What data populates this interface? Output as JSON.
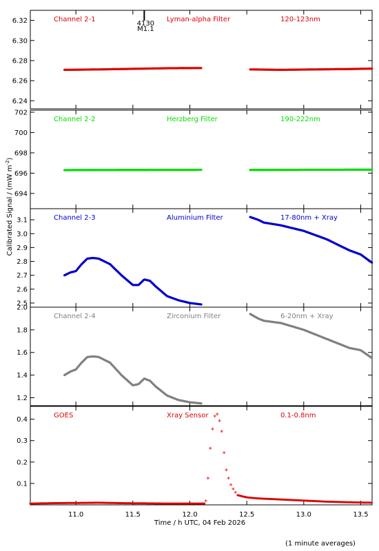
{
  "footer_note": "(1 minute averages)",
  "chart_data": {
    "type": "scatter",
    "xlabel": "Time / h UTC, 04 Feb 2026",
    "ylabel": "Calibrated Signal / (mW m",
    "ylabel_exp": "-2",
    "ylabel_close": ")",
    "xlim": [
      10.6,
      13.6
    ],
    "xticks": [
      "11.0",
      "11.5",
      "12.0",
      "12.5",
      "13.0",
      "13.5"
    ],
    "xtick_values": [
      11.0,
      11.5,
      12.0,
      12.5,
      13.0,
      13.5
    ],
    "marker": {
      "label_top": "4130",
      "label_bottom": "M1.1",
      "x": 11.6
    },
    "panels": [
      {
        "channel": "Channel 2-1",
        "filter": "Lyman-alpha Filter",
        "band": "120-123nm",
        "color": "#dd0000",
        "ylim": [
          6.232,
          6.33
        ],
        "yticks": [
          "6.24",
          "6.26",
          "6.28",
          "6.30",
          "6.32"
        ],
        "ytick_values": [
          6.24,
          6.26,
          6.28,
          6.3,
          6.32
        ],
        "segments": [
          {
            "x": [
              10.9,
              11.2,
              11.5,
              11.8,
              12.1
            ],
            "y": [
              6.2708,
              6.2712,
              6.2718,
              6.2724,
              6.2726
            ]
          },
          {
            "x": [
              12.53,
              12.8,
              13.1,
              13.4,
              13.6
            ],
            "y": [
              6.2712,
              6.2708,
              6.2712,
              6.2716,
              6.272
            ]
          }
        ]
      },
      {
        "channel": "Channel 2-2",
        "filter": "Herzberg Filter",
        "band": "190-222nm",
        "color": "#00dd00",
        "ylim": [
          692.5,
          702.2
        ],
        "yticks": [
          "694",
          "696",
          "698",
          "700",
          "702"
        ],
        "ytick_values": [
          694,
          696,
          698,
          700,
          702
        ],
        "segments": [
          {
            "x": [
              10.9,
              11.5,
              12.1
            ],
            "y": [
              696.3,
              696.32,
              696.33
            ]
          },
          {
            "x": [
              12.53,
              13.0,
              13.6
            ],
            "y": [
              696.32,
              696.33,
              696.34
            ]
          }
        ]
      },
      {
        "channel": "Channel 2-3",
        "filter": "Aluminium Filter",
        "band": "17-80nm + Xray",
        "color": "#0000cc",
        "ylim": [
          2.47,
          3.18
        ],
        "yticks": [
          "2.5",
          "2.6",
          "2.7",
          "2.8",
          "2.9",
          "3.0",
          "3.1"
        ],
        "ytick_values": [
          2.5,
          2.6,
          2.7,
          2.8,
          2.9,
          3.0,
          3.1
        ],
        "segments": [
          {
            "x": [
              10.9,
              10.95,
              11.0,
              11.05,
              11.1,
              11.15,
              11.2,
              11.3,
              11.4,
              11.5,
              11.55,
              11.6,
              11.65,
              11.7,
              11.8,
              11.9,
              12.0,
              12.1
            ],
            "y": [
              2.7,
              2.72,
              2.73,
              2.78,
              2.82,
              2.825,
              2.82,
              2.78,
              2.7,
              2.63,
              2.63,
              2.67,
              2.66,
              2.62,
              2.55,
              2.52,
              2.5,
              2.49
            ]
          },
          {
            "x": [
              12.53,
              12.6,
              12.65,
              12.8,
              13.0,
              13.2,
              13.4,
              13.5,
              13.6
            ],
            "y": [
              3.12,
              3.1,
              3.08,
              3.06,
              3.02,
              2.96,
              2.88,
              2.85,
              2.79
            ]
          }
        ]
      },
      {
        "channel": "Channel 2-4",
        "filter": "Zirconium Filter",
        "band": "6-20nm + Xray",
        "color": "#808080",
        "ylim": [
          1.13,
          2.0
        ],
        "yticks": [
          "1.2",
          "1.4",
          "1.6",
          "1.8",
          "2.0"
        ],
        "ytick_values": [
          1.2,
          1.4,
          1.6,
          1.8,
          2.0
        ],
        "segments": [
          {
            "x": [
              10.9,
              10.95,
              11.0,
              11.05,
              11.1,
              11.15,
              11.2,
              11.3,
              11.4,
              11.5,
              11.55,
              11.6,
              11.65,
              11.7,
              11.8,
              11.9,
              12.0,
              12.1
            ],
            "y": [
              1.4,
              1.43,
              1.45,
              1.51,
              1.56,
              1.565,
              1.56,
              1.51,
              1.4,
              1.31,
              1.32,
              1.37,
              1.35,
              1.3,
              1.22,
              1.18,
              1.16,
              1.15
            ]
          },
          {
            "x": [
              12.53,
              12.6,
              12.65,
              12.8,
              13.0,
              13.2,
              13.4,
              13.5,
              13.6
            ],
            "y": [
              1.94,
              1.9,
              1.88,
              1.86,
              1.8,
              1.72,
              1.64,
              1.62,
              1.55
            ]
          }
        ]
      },
      {
        "channel": "GOES",
        "filter": "Xray Sensor",
        "band": "0.1-0.8nm",
        "color": "#dd0000",
        "ylim": [
          0.0,
          0.46
        ],
        "yticks": [
          "0.1",
          "0.2",
          "0.3",
          "0.4"
        ],
        "ytick_values": [
          0.1,
          0.2,
          0.3,
          0.4
        ],
        "baseline": {
          "x": [
            10.6,
            10.8,
            11.0,
            11.2,
            11.4,
            11.6,
            11.8,
            12.0,
            12.13
          ],
          "y": [
            0.006,
            0.008,
            0.009,
            0.01,
            0.008,
            0.007,
            0.006,
            0.006,
            0.006
          ]
        },
        "stars": {
          "x": [
            12.14,
            12.16,
            12.18,
            12.2,
            12.22,
            12.24,
            12.26,
            12.28,
            12.3,
            12.32,
            12.34,
            12.36,
            12.38,
            12.4
          ],
          "y": [
            0.015,
            0.12,
            0.26,
            0.35,
            0.41,
            0.42,
            0.39,
            0.34,
            0.24,
            0.16,
            0.12,
            0.09,
            0.07,
            0.055
          ]
        },
        "tail": {
          "x": [
            12.42,
            12.5,
            12.6,
            12.8,
            13.0,
            13.2,
            13.4,
            13.6
          ],
          "y": [
            0.045,
            0.035,
            0.03,
            0.025,
            0.02,
            0.015,
            0.012,
            0.01
          ]
        }
      }
    ]
  }
}
